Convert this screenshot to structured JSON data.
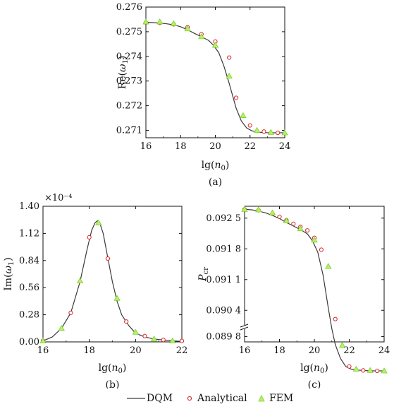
{
  "colors": {
    "curve": "#3a3a3a",
    "analytical": "#d62728",
    "fem": "#7ccf2a",
    "frame": "#111111"
  },
  "legend": {
    "dqm": "DQM",
    "analytical": "Analytical",
    "fem": "FEM"
  },
  "chart_data": [
    {
      "id": "a",
      "caption": "(a)",
      "type": "line",
      "xlabel": "lg(n0)",
      "ylabel": "Re(ω1)",
      "xlim": [
        16,
        24
      ],
      "ylim": [
        0.2707,
        0.276
      ],
      "xticks": [
        "16",
        "18",
        "20",
        "22",
        "24"
      ],
      "yticks": [
        "0.271",
        "0.272",
        "0.273",
        "0.274",
        "0.275",
        "0.276"
      ],
      "series": [
        {
          "name": "DQM",
          "marker": "line",
          "x": [
            16,
            16.4,
            16.8,
            17.2,
            17.6,
            18,
            18.4,
            18.8,
            19.2,
            19.6,
            19.9,
            20.2,
            20.5,
            20.8,
            21.0,
            21.2,
            21.5,
            21.8,
            22.1,
            22.4,
            22.8,
            23.2,
            23.6,
            24
          ],
          "y": [
            0.27538,
            0.27537,
            0.27535,
            0.27532,
            0.27528,
            0.2752,
            0.27508,
            0.27493,
            0.2748,
            0.27465,
            0.27445,
            0.27415,
            0.2736,
            0.2729,
            0.2724,
            0.2719,
            0.27138,
            0.2711,
            0.27098,
            0.27093,
            0.27091,
            0.2709,
            0.2709,
            0.2709
          ]
        },
        {
          "name": "Analytical",
          "marker": "circle",
          "x": [
            16,
            16.8,
            17.6,
            18.4,
            19.2,
            20.0,
            20.8,
            21.2,
            22.0,
            22.8,
            23.6
          ],
          "y": [
            0.27537,
            0.27536,
            0.2753,
            0.27518,
            0.2749,
            0.2746,
            0.27395,
            0.27232,
            0.2712,
            0.27095,
            0.2709
          ]
        },
        {
          "name": "FEM",
          "marker": "triangle",
          "x": [
            16,
            16.8,
            17.6,
            18.4,
            19.2,
            20.0,
            20.8,
            21.6,
            22.4,
            23.2,
            24
          ],
          "y": [
            0.2754,
            0.2754,
            0.27533,
            0.27512,
            0.2748,
            0.27445,
            0.2732,
            0.2716,
            0.271,
            0.27092,
            0.2709
          ]
        }
      ]
    },
    {
      "id": "b",
      "caption": "(b)",
      "type": "line",
      "xlabel": "lg(n0)",
      "ylabel": "Im(ω1)",
      "scale_label": "×10⁻⁴",
      "xlim": [
        16,
        22
      ],
      "ylim": [
        0,
        1.4
      ],
      "xticks": [
        "16",
        "18",
        "20",
        "22"
      ],
      "yticks": [
        "0.00",
        "0.28",
        "0.56",
        "0.84",
        "1.12",
        "1.40"
      ],
      "series": [
        {
          "name": "DQM",
          "marker": "line",
          "x": [
            16,
            16.4,
            16.8,
            17.2,
            17.6,
            17.9,
            18.1,
            18.25,
            18.35,
            18.45,
            18.6,
            18.8,
            19.0,
            19.2,
            19.4,
            19.7,
            20.0,
            20.4,
            20.8,
            21.2,
            21.6,
            22
          ],
          "y": [
            0.01,
            0.05,
            0.14,
            0.3,
            0.62,
            0.95,
            1.15,
            1.23,
            1.25,
            1.23,
            1.12,
            0.87,
            0.62,
            0.42,
            0.28,
            0.17,
            0.09,
            0.05,
            0.03,
            0.02,
            0.01,
            0.005
          ]
        },
        {
          "name": "Analytical",
          "marker": "circle",
          "x": [
            16,
            17.2,
            18.0,
            18.8,
            19.6,
            20.4,
            21.2,
            22
          ],
          "y": [
            0.01,
            0.3,
            1.08,
            0.86,
            0.21,
            0.06,
            0.02,
            0.01
          ]
        },
        {
          "name": "FEM",
          "marker": "triangle",
          "x": [
            16,
            16.8,
            17.6,
            18.4,
            19.2,
            20.0,
            20.8,
            21.6
          ],
          "y": [
            0.01,
            0.14,
            0.63,
            1.23,
            0.45,
            0.1,
            0.03,
            0.01
          ]
        }
      ]
    },
    {
      "id": "c",
      "caption": "(c)",
      "type": "line",
      "xlabel": "lg(n0)",
      "ylabel": "Pcr",
      "xlim": [
        16,
        24
      ],
      "ylim": [
        0.08968,
        0.09277
      ],
      "xticks": [
        "16",
        "18",
        "20",
        "22",
        "24"
      ],
      "yticks": [
        "0.089 8",
        "0.090 4",
        "0.091 1",
        "0.091 8",
        "0.092 5"
      ],
      "ytick_values": [
        0.0898,
        0.0904,
        0.0911,
        0.0918,
        0.0925
      ],
      "axis_break": true,
      "series": [
        {
          "name": "DQM",
          "marker": "line",
          "x": [
            16,
            16.4,
            16.8,
            17.2,
            17.6,
            18,
            18.4,
            18.8,
            19.2,
            19.6,
            19.9,
            20.2,
            20.5,
            20.8,
            21.0,
            21.2,
            21.5,
            21.8,
            22.1,
            22.4,
            22.8,
            23.2,
            23.6,
            24
          ],
          "y": [
            0.0927,
            0.09269,
            0.09266,
            0.09262,
            0.09256,
            0.09249,
            0.0924,
            0.09232,
            0.09224,
            0.09214,
            0.09198,
            0.09172,
            0.0912,
            0.09045,
            0.08998,
            0.08962,
            0.0893,
            0.08912,
            0.08906,
            0.08904,
            0.08903,
            0.08902,
            0.08902,
            0.08902
          ]
        },
        {
          "name": "Analytical",
          "marker": "circle",
          "x": [
            16,
            16.8,
            17.6,
            18.0,
            18.4,
            18.8,
            19.2,
            19.6,
            20.0,
            20.4,
            21.2,
            22.0,
            22.8,
            23.6
          ],
          "y": [
            0.0927,
            0.09268,
            0.0926,
            0.09253,
            0.09245,
            0.09237,
            0.0923,
            0.09222,
            0.09205,
            0.09178,
            0.0902,
            0.08912,
            0.08903,
            0.08902
          ]
        },
        {
          "name": "FEM",
          "marker": "triangle",
          "x": [
            16,
            16.8,
            17.6,
            18.4,
            19.2,
            20.0,
            20.8,
            21.6,
            22.4,
            23.2,
            24
          ],
          "y": [
            0.0927,
            0.09269,
            0.09262,
            0.09244,
            0.09226,
            0.092,
            0.0914,
            0.0896,
            0.08906,
            0.08903,
            0.08902
          ]
        }
      ]
    }
  ]
}
